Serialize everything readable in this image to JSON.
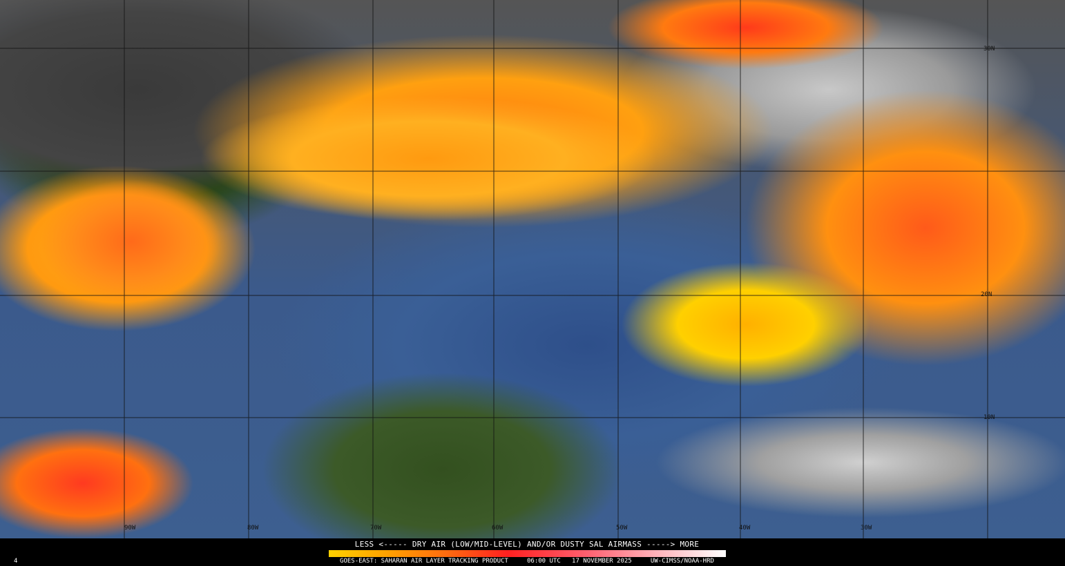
{
  "legend": {
    "title": "LESS <----- DRY AIR (LOW/MID-LEVEL) AND/OR DUSTY SAL AIRMASS -----> MORE",
    "colors": [
      "#ffd000",
      "#ffa000",
      "#ff6a10",
      "#ff2020",
      "#ff6070",
      "#ffb0b8",
      "#ffffff"
    ]
  },
  "footer": {
    "frame": "4",
    "product": "GOES-EAST: SAHARAN AIR LAYER TRACKING PRODUCT",
    "time": "06:00 UTC",
    "date": "17 NOVEMBER 2025",
    "credit": "UW-CIMSS/NOAA-HRD"
  },
  "grid": {
    "lat_labels": [
      "30N",
      "20N",
      "10N"
    ],
    "lon_labels": [
      "90W",
      "80W",
      "70W",
      "60W",
      "50W",
      "40W",
      "30W"
    ]
  }
}
